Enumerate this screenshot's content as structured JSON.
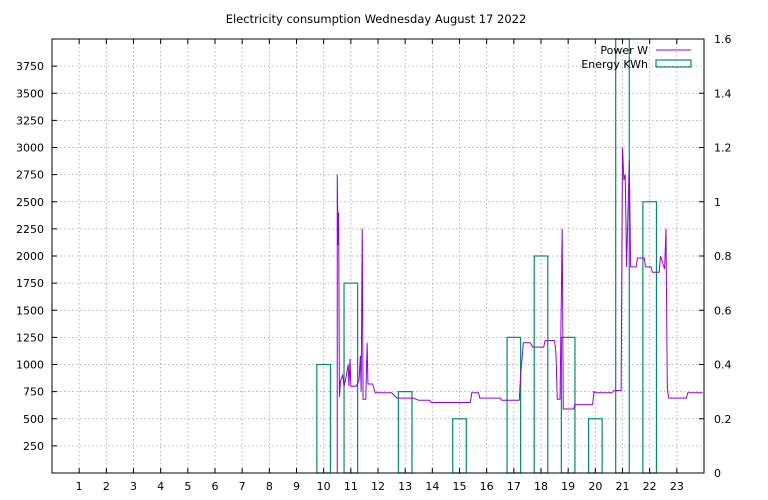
{
  "chart_data": {
    "type": "step",
    "title": "Electricity consumption Wednesday August 17 2022",
    "xlim": [
      0,
      24
    ],
    "x_ticks": [
      1,
      2,
      3,
      4,
      5,
      6,
      7,
      8,
      9,
      10,
      11,
      12,
      13,
      14,
      15,
      16,
      17,
      18,
      19,
      20,
      21,
      22,
      23
    ],
    "y_left": {
      "range": [
        0,
        4000
      ],
      "ticks": [
        250,
        500,
        750,
        1000,
        1250,
        1500,
        1750,
        2000,
        2250,
        2500,
        2750,
        3000,
        3250,
        3500,
        3750
      ]
    },
    "y_right": {
      "range": [
        0,
        1.6
      ],
      "ticks": [
        "0",
        "0.2",
        "0.4",
        "0.6",
        "0.8",
        "1",
        "1.2",
        "1.4",
        "1.6"
      ],
      "tick_values": [
        0,
        0.2,
        0.4,
        0.6,
        0.8,
        1,
        1.2,
        1.4,
        1.6
      ]
    },
    "grid": true,
    "legend_position": "top-right",
    "series": [
      {
        "name": "Power W",
        "axis": "left",
        "color": "#9400d3",
        "style": "line",
        "points": [
          [
            9.9,
            0
          ],
          [
            10.5,
            0
          ],
          [
            10.5,
            2750
          ],
          [
            10.53,
            2100
          ],
          [
            10.55,
            2400
          ],
          [
            10.58,
            700
          ],
          [
            10.62,
            850
          ],
          [
            10.7,
            900
          ],
          [
            10.75,
            800
          ],
          [
            10.8,
            850
          ],
          [
            10.9,
            1000
          ],
          [
            10.93,
            800
          ],
          [
            10.97,
            1050
          ],
          [
            11.0,
            800
          ],
          [
            11.1,
            800
          ],
          [
            11.2,
            800
          ],
          [
            11.3,
            850
          ],
          [
            11.35,
            1080
          ],
          [
            11.38,
            750
          ],
          [
            11.42,
            2250
          ],
          [
            11.45,
            680
          ],
          [
            11.55,
            680
          ],
          [
            11.6,
            1200
          ],
          [
            11.63,
            820
          ],
          [
            11.8,
            820
          ],
          [
            11.9,
            740
          ],
          [
            12.5,
            740
          ],
          [
            12.7,
            690
          ],
          [
            13.3,
            690
          ],
          [
            13.5,
            670
          ],
          [
            13.9,
            670
          ],
          [
            13.95,
            650
          ],
          [
            15.4,
            650
          ],
          [
            15.45,
            740
          ],
          [
            15.7,
            740
          ],
          [
            15.75,
            690
          ],
          [
            16.5,
            690
          ],
          [
            16.55,
            670
          ],
          [
            17.2,
            670
          ],
          [
            17.25,
            900
          ],
          [
            17.35,
            1200
          ],
          [
            17.6,
            1200
          ],
          [
            17.7,
            1160
          ],
          [
            18.1,
            1160
          ],
          [
            18.15,
            1220
          ],
          [
            18.5,
            1220
          ],
          [
            18.55,
            1100
          ],
          [
            18.6,
            680
          ],
          [
            18.7,
            680
          ],
          [
            18.78,
            2250
          ],
          [
            18.82,
            590
          ],
          [
            19.2,
            590
          ],
          [
            19.25,
            630
          ],
          [
            19.9,
            630
          ],
          [
            19.95,
            750
          ],
          [
            20.0,
            740
          ],
          [
            20.6,
            740
          ],
          [
            20.7,
            760
          ],
          [
            20.95,
            760
          ],
          [
            21.0,
            3000
          ],
          [
            21.05,
            2700
          ],
          [
            21.1,
            2750
          ],
          [
            21.15,
            1900
          ],
          [
            21.25,
            2880
          ],
          [
            21.3,
            1900
          ],
          [
            21.5,
            1900
          ],
          [
            21.55,
            1980
          ],
          [
            21.8,
            1980
          ],
          [
            21.85,
            1900
          ],
          [
            22.05,
            1900
          ],
          [
            22.1,
            1850
          ],
          [
            22.35,
            1850
          ],
          [
            22.4,
            2000
          ],
          [
            22.55,
            1880
          ],
          [
            22.6,
            2250
          ],
          [
            22.65,
            780
          ],
          [
            22.7,
            690
          ],
          [
            23.35,
            690
          ],
          [
            23.4,
            740
          ],
          [
            23.95,
            740
          ]
        ]
      },
      {
        "name": "Energy KWh",
        "axis": "right",
        "color": "#008b6b",
        "style": "bars",
        "bars": [
          {
            "hour": 10,
            "value": 0.4
          },
          {
            "hour": 11,
            "value": 0.7
          },
          {
            "hour": 13,
            "value": 0.3
          },
          {
            "hour": 15,
            "value": 0.2
          },
          {
            "hour": 17,
            "value": 0.5
          },
          {
            "hour": 18,
            "value": 0.8
          },
          {
            "hour": 19,
            "value": 0.5
          },
          {
            "hour": 20,
            "value": 0.2
          },
          {
            "hour": 21,
            "value": 1.6
          },
          {
            "hour": 22,
            "value": 1.0
          }
        ]
      }
    ]
  }
}
